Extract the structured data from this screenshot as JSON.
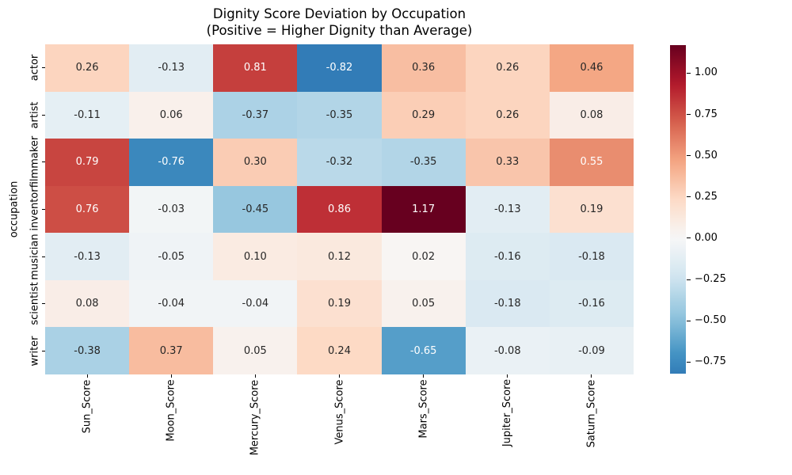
{
  "title": {
    "line1": "Dignity Score Deviation by Occupation",
    "line2": "(Positive = Higher Dignity than Average)"
  },
  "chart_data": {
    "type": "heatmap",
    "title": "Dignity Score Deviation by Occupation\n(Positive = Higher Dignity than Average)",
    "xlabel": "",
    "ylabel": "occupation",
    "columns": [
      "Sun_Score",
      "Moon_Score",
      "Mercury_Score",
      "Venus_Score",
      "Mars_Score",
      "Jupiter_Score",
      "Saturn_Score"
    ],
    "rows": [
      "actor",
      "artist",
      "filmmaker",
      "inventor",
      "musician",
      "scientist",
      "writer"
    ],
    "values": [
      [
        0.26,
        -0.13,
        0.81,
        -0.82,
        0.36,
        0.26,
        0.46
      ],
      [
        -0.11,
        0.06,
        -0.37,
        -0.35,
        0.29,
        0.26,
        0.08
      ],
      [
        0.79,
        -0.76,
        0.3,
        -0.32,
        -0.35,
        0.33,
        0.55
      ],
      [
        0.76,
        -0.03,
        -0.45,
        0.86,
        1.17,
        -0.13,
        0.19
      ],
      [
        -0.13,
        -0.05,
        0.1,
        0.12,
        0.02,
        -0.16,
        -0.18
      ],
      [
        0.08,
        -0.04,
        -0.04,
        0.19,
        0.05,
        -0.18,
        -0.16
      ],
      [
        -0.38,
        0.37,
        0.05,
        0.24,
        -0.65,
        -0.08,
        -0.09
      ]
    ],
    "value_format_decimals": 2,
    "colorscale": {
      "name": "RdBu_r",
      "center": 0,
      "vmin": -0.82,
      "vmax": 1.17,
      "stops": [
        "#053061",
        "#2166ac",
        "#4393c3",
        "#92c5de",
        "#d1e5f0",
        "#f7f7f7",
        "#fddbc7",
        "#f4a582",
        "#d6604d",
        "#b2182b",
        "#67001f"
      ]
    },
    "colorbar": {
      "position": "right",
      "ticks": [
        {
          "value": 1.0,
          "label": "1.00"
        },
        {
          "value": 0.75,
          "label": "0.75"
        },
        {
          "value": 0.5,
          "label": "0.50"
        },
        {
          "value": 0.25,
          "label": "0.25"
        },
        {
          "value": 0.0,
          "label": "0.00"
        },
        {
          "value": -0.25,
          "label": "−0.25"
        },
        {
          "value": -0.5,
          "label": "−0.50"
        },
        {
          "value": -0.75,
          "label": "−0.75"
        }
      ]
    },
    "grid": false,
    "annotations": true
  },
  "colors": {
    "background": "#ffffff",
    "annot_dark": "#262626",
    "annot_light": "#ffffff",
    "axis_text": "#000000"
  }
}
